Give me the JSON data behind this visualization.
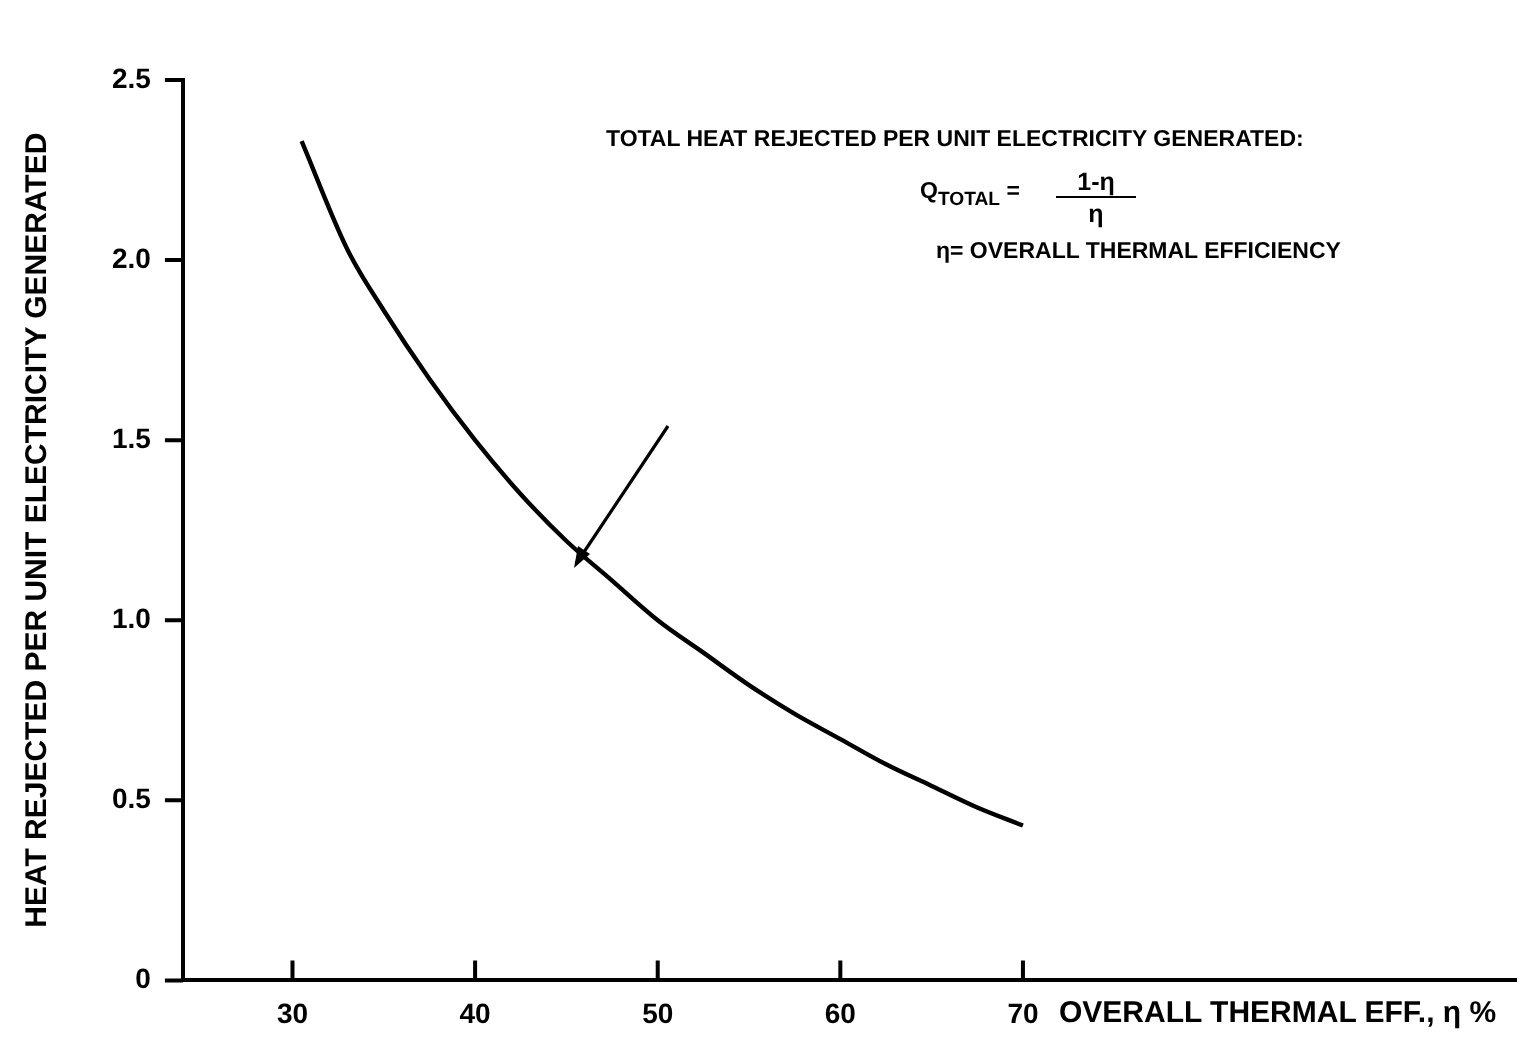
{
  "chart_data": {
    "type": "line",
    "xlabel": "OVERALL THERMAL EFF., η %",
    "ylabel": "HEAT REJECTED PER UNIT ELECTRICITY GENERATED",
    "x": [
      30.5,
      33,
      35,
      37.5,
      40,
      42.5,
      45,
      47.5,
      50,
      52.5,
      55,
      57.5,
      60,
      62.5,
      65,
      67.5,
      70
    ],
    "series": [
      {
        "color": "#000000",
        "values": [
          2.33,
          2.03,
          1.86,
          1.67,
          1.5,
          1.35,
          1.22,
          1.11,
          1.0,
          0.91,
          0.82,
          0.74,
          0.67,
          0.6,
          0.54,
          0.48,
          0.43
        ]
      }
    ],
    "xlim": [
      24,
      97
    ],
    "xticks": [
      30,
      40,
      50,
      60,
      70
    ],
    "ylim": [
      0,
      2.5
    ],
    "yticks": [
      0,
      0.5,
      {
        "value": 1,
        "label": "1.0"
      },
      1.5,
      {
        "value": 2,
        "label": "2.0"
      },
      2.5
    ],
    "grid": false,
    "legend": false,
    "marker": "none",
    "line_style": "solid",
    "annotations": [
      "TOTAL HEAT REJECTED PER UNIT ELECTRICITY GENERATED:",
      "Q$_{TOTAL}$ =",
      "1-η",
      "η",
      "η= OVERALL THERMAL EFFICIENCY"
    ]
  }
}
